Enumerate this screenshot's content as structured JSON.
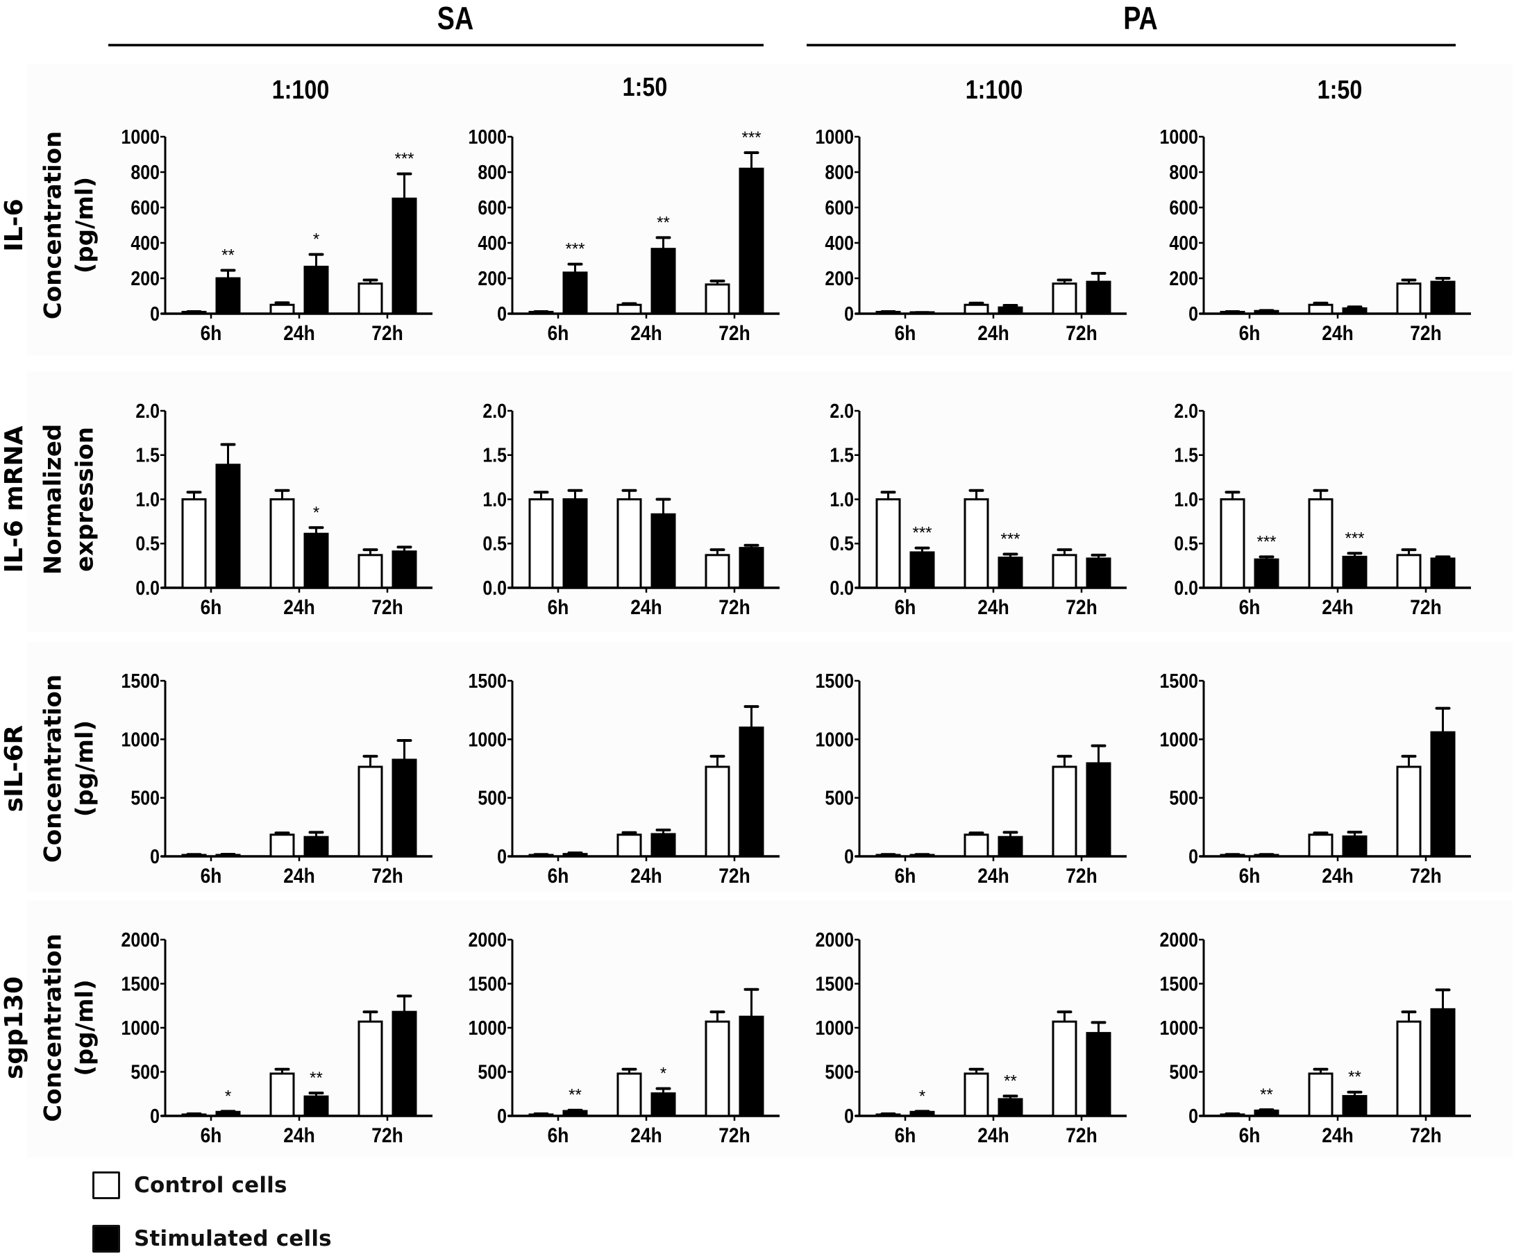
{
  "groups": [
    {
      "label": "SA"
    },
    {
      "label": "PA"
    }
  ],
  "columns": [
    {
      "group": "SA",
      "label": "1:100"
    },
    {
      "group": "SA",
      "label": "1:50"
    },
    {
      "group": "PA",
      "label": "1:100"
    },
    {
      "group": "PA",
      "label": "1:50"
    }
  ],
  "rows": [
    {
      "label_lines": [
        "IL-6",
        "Concentration",
        "(pg/ml)"
      ]
    },
    {
      "label_lines": [
        "IL-6 mRNA",
        "Normalized",
        "expression"
      ]
    },
    {
      "label_lines": [
        "sIL-6R",
        "Concentration",
        "(pg/ml)"
      ]
    },
    {
      "label_lines": [
        "sgp130",
        "Concentration",
        "(pg/ml)"
      ]
    }
  ],
  "legend": {
    "control": "Control cells",
    "stimulated": "Stimulated cells"
  },
  "colors": {
    "control_fill": "#ffffff",
    "stimulated_fill": "#000000",
    "axis": "#000000",
    "panel_background": "#fcfcfc"
  },
  "chart_data": {
    "type": "bar",
    "layout": "grid 4 rows x 4 columns",
    "categories": [
      "6h",
      "24h",
      "72h"
    ],
    "series_names": [
      "Control cells",
      "Stimulated cells"
    ],
    "panels": [
      {
        "row": "IL-6 Concentration (pg/ml)",
        "column": "SA 1:100",
        "ylim": [
          0,
          1000
        ],
        "yticks": [
          "0",
          "200",
          "400",
          "600",
          "800",
          "1000"
        ],
        "control": {
          "values": [
            10,
            50,
            170
          ],
          "err": [
            12,
            62,
            190
          ]
        },
        "stimulated": {
          "values": [
            200,
            265,
            650
          ],
          "err": [
            245,
            335,
            790
          ]
        },
        "significance": [
          "**",
          "*",
          "***"
        ]
      },
      {
        "row": "IL-6 Concentration (pg/ml)",
        "column": "SA 1:50",
        "ylim": [
          0,
          1000
        ],
        "yticks": [
          "0",
          "200",
          "400",
          "600",
          "800",
          "1000"
        ],
        "control": {
          "values": [
            10,
            50,
            165
          ],
          "err": [
            12,
            57,
            185
          ]
        },
        "stimulated": {
          "values": [
            232,
            366,
            819
          ],
          "err": [
            280,
            430,
            910
          ]
        },
        "significance": [
          "***",
          "**",
          "***"
        ]
      },
      {
        "row": "IL-6 Concentration (pg/ml)",
        "column": "PA 1:100",
        "ylim": [
          0,
          1000
        ],
        "yticks": [
          "0",
          "200",
          "400",
          "600",
          "800",
          "1000"
        ],
        "control": {
          "values": [
            10,
            50,
            170
          ],
          "err": [
            12,
            60,
            190
          ]
        },
        "stimulated": {
          "values": [
            5,
            35,
            180
          ],
          "err": [
            7,
            47,
            228
          ]
        },
        "significance": [
          "",
          "",
          ""
        ]
      },
      {
        "row": "IL-6 Concentration (pg/ml)",
        "column": "PA 1:50",
        "ylim": [
          0,
          1000
        ],
        "yticks": [
          "0",
          "200",
          "400",
          "600",
          "800",
          "1000"
        ],
        "control": {
          "values": [
            10,
            50,
            170
          ],
          "err": [
            12,
            60,
            190
          ]
        },
        "stimulated": {
          "values": [
            15,
            30,
            180
          ],
          "err": [
            18,
            38,
            200
          ]
        },
        "significance": [
          "",
          "",
          ""
        ]
      },
      {
        "row": "IL-6 mRNA Normalized expression",
        "column": "SA 1:100",
        "ylim": [
          0,
          2.0
        ],
        "yticks": [
          "0.0",
          "0.5",
          "1.0",
          "1.5",
          "2.0"
        ],
        "control": {
          "values": [
            1.0,
            1.0,
            0.37
          ],
          "err": [
            1.08,
            1.1,
            0.43
          ]
        },
        "stimulated": {
          "values": [
            1.39,
            0.61,
            0.41
          ],
          "err": [
            1.62,
            0.68,
            0.46
          ]
        },
        "significance": [
          "",
          "*",
          ""
        ]
      },
      {
        "row": "IL-6 mRNA Normalized expression",
        "column": "SA 1:50",
        "ylim": [
          0,
          2.0
        ],
        "yticks": [
          "0.0",
          "0.5",
          "1.0",
          "1.5",
          "2.0"
        ],
        "control": {
          "values": [
            1.0,
            1.0,
            0.37
          ],
          "err": [
            1.08,
            1.1,
            0.43
          ]
        },
        "stimulated": {
          "values": [
            1.0,
            0.83,
            0.45
          ],
          "err": [
            1.1,
            1.0,
            0.48
          ]
        },
        "significance": [
          "",
          "",
          ""
        ]
      },
      {
        "row": "IL-6 mRNA Normalized expression",
        "column": "PA 1:100",
        "ylim": [
          0,
          2.0
        ],
        "yticks": [
          "0.0",
          "0.5",
          "1.0",
          "1.5",
          "2.0"
        ],
        "control": {
          "values": [
            1.0,
            1.0,
            0.37
          ],
          "err": [
            1.08,
            1.1,
            0.43
          ]
        },
        "stimulated": {
          "values": [
            0.4,
            0.34,
            0.33
          ],
          "err": [
            0.45,
            0.38,
            0.37
          ]
        },
        "significance": [
          "***",
          "***",
          ""
        ]
      },
      {
        "row": "IL-6 mRNA Normalized expression",
        "column": "PA 1:50",
        "ylim": [
          0,
          2.0
        ],
        "yticks": [
          "0.0",
          "0.5",
          "1.0",
          "1.5",
          "2.0"
        ],
        "control": {
          "values": [
            1.0,
            1.0,
            0.37
          ],
          "err": [
            1.08,
            1.1,
            0.43
          ]
        },
        "stimulated": {
          "values": [
            0.32,
            0.35,
            0.33
          ],
          "err": [
            0.35,
            0.39,
            0.35
          ]
        },
        "significance": [
          "***",
          "***",
          ""
        ]
      },
      {
        "row": "sIL-6R Concentration (pg/ml)",
        "column": "SA 1:100",
        "ylim": [
          0,
          1500
        ],
        "yticks": [
          "0",
          "500",
          "1000",
          "1500"
        ],
        "control": {
          "values": [
            10,
            185,
            765
          ],
          "err": [
            16,
            200,
            855
          ]
        },
        "stimulated": {
          "values": [
            12,
            165,
            825
          ],
          "err": [
            18,
            205,
            990
          ]
        },
        "significance": [
          "",
          "",
          ""
        ]
      },
      {
        "row": "sIL-6R Concentration (pg/ml)",
        "column": "SA 1:50",
        "ylim": [
          0,
          1500
        ],
        "yticks": [
          "0",
          "500",
          "1000",
          "1500"
        ],
        "control": {
          "values": [
            10,
            185,
            765
          ],
          "err": [
            16,
            203,
            855
          ]
        },
        "stimulated": {
          "values": [
            20,
            190,
            1100
          ],
          "err": [
            30,
            225,
            1280
          ]
        },
        "significance": [
          "",
          "",
          ""
        ]
      },
      {
        "row": "sIL-6R Concentration (pg/ml)",
        "column": "PA 1:100",
        "ylim": [
          0,
          1500
        ],
        "yticks": [
          "0",
          "500",
          "1000",
          "1500"
        ],
        "control": {
          "values": [
            10,
            185,
            765
          ],
          "err": [
            16,
            200,
            855
          ]
        },
        "stimulated": {
          "values": [
            10,
            165,
            795
          ],
          "err": [
            16,
            205,
            945
          ]
        },
        "significance": [
          "",
          "",
          ""
        ]
      },
      {
        "row": "sIL-6R Concentration (pg/ml)",
        "column": "PA 1:50",
        "ylim": [
          0,
          1500
        ],
        "yticks": [
          "0",
          "500",
          "1000",
          "1500"
        ],
        "control": {
          "values": [
            10,
            185,
            765
          ],
          "err": [
            16,
            200,
            855
          ]
        },
        "stimulated": {
          "values": [
            10,
            170,
            1060
          ],
          "err": [
            16,
            207,
            1265
          ]
        },
        "significance": [
          "",
          "",
          ""
        ]
      },
      {
        "row": "sgp130 Concentration (pg/ml)",
        "column": "SA 1:100",
        "ylim": [
          0,
          2000
        ],
        "yticks": [
          "0",
          "500",
          "1000",
          "1500",
          "2000"
        ],
        "control": {
          "values": [
            15,
            480,
            1070
          ],
          "err": [
            24,
            530,
            1180
          ]
        },
        "stimulated": {
          "values": [
            45,
            220,
            1180
          ],
          "err": [
            52,
            260,
            1360
          ]
        },
        "significance": [
          "*",
          "**",
          ""
        ]
      },
      {
        "row": "sgp130 Concentration (pg/ml)",
        "column": "SA 1:50",
        "ylim": [
          0,
          2000
        ],
        "yticks": [
          "0",
          "500",
          "1000",
          "1500",
          "2000"
        ],
        "control": {
          "values": [
            15,
            480,
            1070
          ],
          "err": [
            24,
            530,
            1180
          ]
        },
        "stimulated": {
          "values": [
            55,
            255,
            1125
          ],
          "err": [
            65,
            310,
            1435
          ]
        },
        "significance": [
          "**",
          "*",
          ""
        ]
      },
      {
        "row": "sgp130 Concentration (pg/ml)",
        "column": "PA 1:100",
        "ylim": [
          0,
          2000
        ],
        "yticks": [
          "0",
          "500",
          "1000",
          "1500",
          "2000"
        ],
        "control": {
          "values": [
            15,
            480,
            1070
          ],
          "err": [
            24,
            530,
            1180
          ]
        },
        "stimulated": {
          "values": [
            45,
            190,
            940
          ],
          "err": [
            52,
            225,
            1060
          ]
        },
        "significance": [
          "*",
          "**",
          ""
        ]
      },
      {
        "row": "sgp130 Concentration (pg/ml)",
        "column": "PA 1:50",
        "ylim": [
          0,
          2000
        ],
        "yticks": [
          "0",
          "500",
          "1000",
          "1500",
          "2000"
        ],
        "control": {
          "values": [
            15,
            480,
            1070
          ],
          "err": [
            24,
            530,
            1180
          ]
        },
        "stimulated": {
          "values": [
            60,
            225,
            1210
          ],
          "err": [
            70,
            270,
            1430
          ]
        },
        "significance": [
          "**",
          "**",
          ""
        ]
      }
    ]
  }
}
